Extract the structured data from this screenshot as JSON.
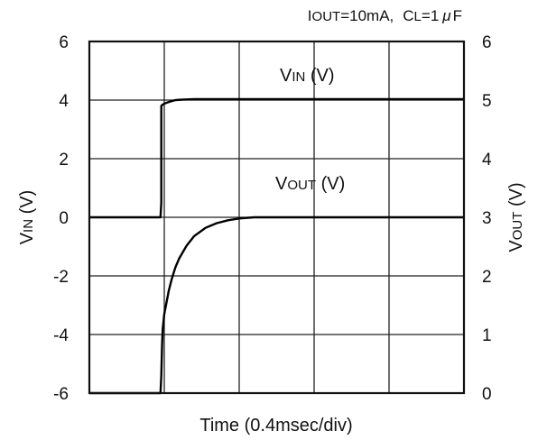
{
  "chart_data": {
    "type": "line",
    "title": "",
    "conditions": {
      "iout_main": "I",
      "iout_sub": "OUT",
      "iout_val": "=10mA,",
      "cl_main": "C",
      "cl_sub": "L",
      "cl_val": "=1",
      "mu": "μ",
      "farad": "F"
    },
    "xlabel": "Time (0.4msec/div)",
    "ylabel_left": {
      "main": "V",
      "sub": "IN",
      "unit": " (V)"
    },
    "ylabel_right": {
      "main": "V",
      "sub": "OUT",
      "unit": " (V)"
    },
    "xlim": [
      0,
      5
    ],
    "ylim_left": [
      -6,
      6
    ],
    "ylim_right": [
      0,
      6
    ],
    "left_ticks": [
      "6",
      "4",
      "2",
      "0",
      "-2",
      "-4",
      "-6"
    ],
    "right_ticks": [
      "6",
      "5",
      "4",
      "3",
      "2",
      "1",
      "0"
    ],
    "grid": true,
    "series": [
      {
        "name": "VIN (V)",
        "label": {
          "main": "V",
          "sub": "IN",
          "unit": " (V)"
        },
        "axis": "left",
        "x": [
          0,
          0.95,
          0.96,
          0.96,
          0.98,
          1.02,
          1.08,
          1.15,
          1.25,
          1.4,
          1.6,
          2.0,
          3.0,
          5.0
        ],
        "y": [
          0,
          0,
          0.5,
          3.8,
          3.85,
          3.9,
          3.95,
          4.0,
          4.02,
          4.03,
          4.03,
          4.03,
          4.03,
          4.03
        ]
      },
      {
        "name": "VOUT (V)",
        "label": {
          "main": "V",
          "sub": "OUT",
          "unit": " (V)"
        },
        "axis": "right",
        "x": [
          0,
          0.95,
          0.96,
          0.97,
          0.98,
          1.0,
          1.03,
          1.06,
          1.1,
          1.15,
          1.2,
          1.3,
          1.4,
          1.55,
          1.7,
          1.85,
          2.0,
          2.2,
          2.5,
          3.0,
          5.0
        ],
        "y": [
          0,
          0,
          0.3,
          0.8,
          1.1,
          1.35,
          1.55,
          1.75,
          1.95,
          2.15,
          2.3,
          2.52,
          2.68,
          2.82,
          2.9,
          2.95,
          2.98,
          3.0,
          3.0,
          3.0,
          3.0
        ]
      }
    ]
  }
}
